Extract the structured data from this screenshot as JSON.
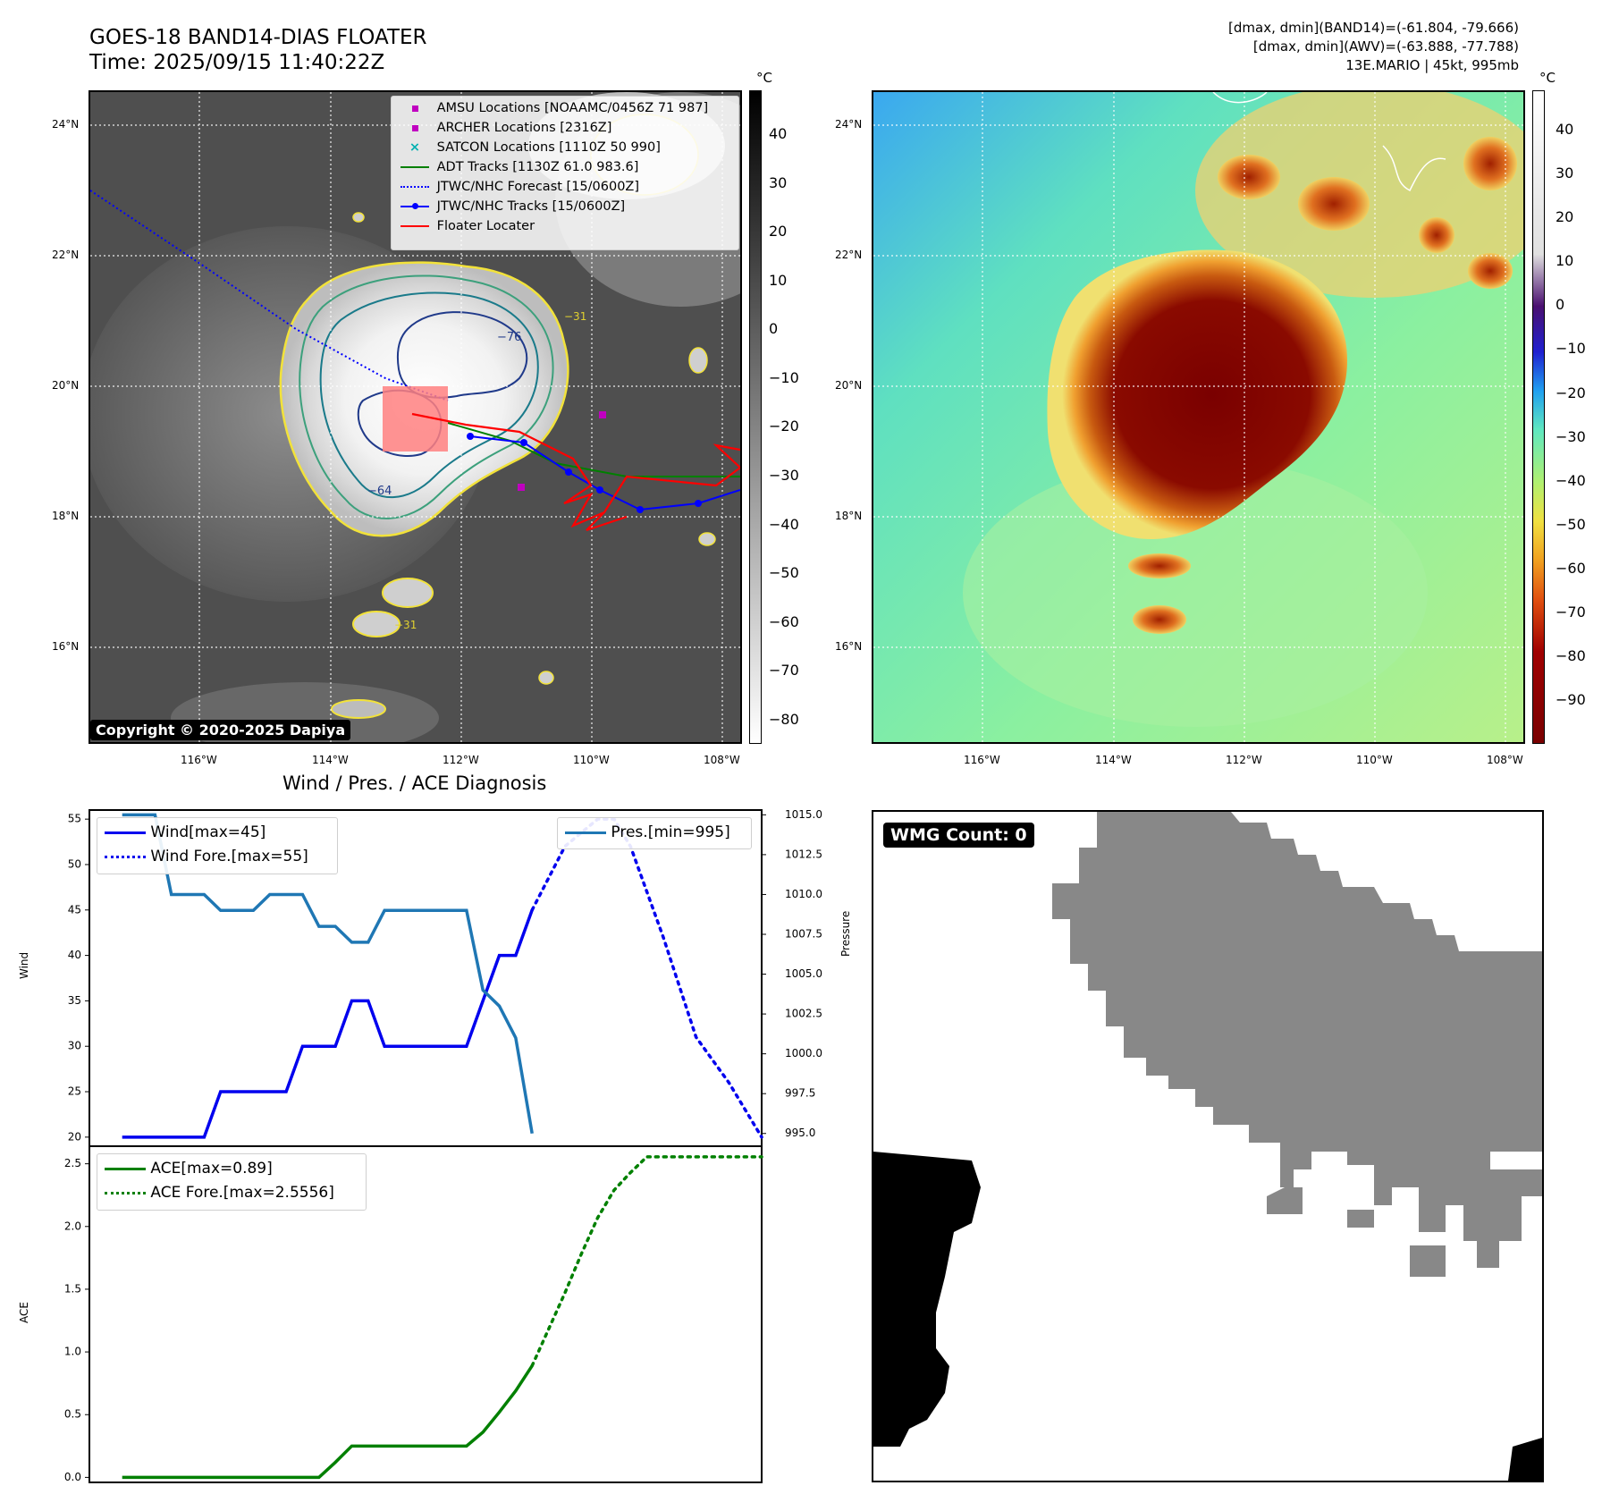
{
  "header": {
    "title_line1": "GOES-18 BAND14-DIAS FLOATER",
    "title_line2": "Time: 2025/09/15 11:40:22Z",
    "right_line1": "[dmax, dmin](BAND14)=(-61.804, -79.666)",
    "right_line2": "[dmax, dmin](AWV)=(-63.888, -77.788)",
    "right_line3": "13E.MARIO | 45kt, 995mb"
  },
  "map_axes": {
    "lat_ticks": [
      "24°N",
      "22°N",
      "20°N",
      "18°N",
      "16°N"
    ],
    "lon_ticks": [
      "116°W",
      "114°W",
      "112°W",
      "110°W",
      "108°W"
    ]
  },
  "ir_panel": {
    "colorbar_unit": "°C",
    "colorbar_ticks": [
      "40",
      "30",
      "20",
      "10",
      "0",
      "−10",
      "−20",
      "−30",
      "−40",
      "−50",
      "−60",
      "−70",
      "−80"
    ],
    "contour_labels": [
      "−76",
      "−64",
      "−31",
      "−31"
    ],
    "copyright": "Copyright © 2020-2025 Dapiya",
    "legend": [
      {
        "label": "AMSU Locations [NOAAMC/0456Z 71 987]",
        "color": "#c000c0",
        "marker": "square"
      },
      {
        "label": "ARCHER Locations [2316Z]",
        "color": "#c000c0",
        "marker": "square"
      },
      {
        "label": "SATCON Locations [1110Z 50 990]",
        "color": "#00b0b0",
        "marker": "x"
      },
      {
        "label": "ADT Tracks [1130Z 61.0 983.6]",
        "color": "#008000",
        "marker": "line"
      },
      {
        "label": "JTWC/NHC Forecast [15/0600Z]",
        "color": "#0000ff",
        "marker": "dotted"
      },
      {
        "label": "JTWC/NHC Tracks [15/0600Z]",
        "color": "#0000ff",
        "marker": "dotline"
      },
      {
        "label": "Floater Locater",
        "color": "#ff0000",
        "marker": "line"
      }
    ]
  },
  "awv_panel": {
    "colorbar_unit": "°C",
    "colorbar_ticks": [
      "40",
      "30",
      "20",
      "10",
      "0",
      "−10",
      "−20",
      "−30",
      "−40",
      "−50",
      "−60",
      "−70",
      "−80",
      "−90"
    ]
  },
  "wmg_panel": {
    "badge": "WMG Count: 0"
  },
  "diagnosis": {
    "title": "Wind / Pres. / ACE Diagnosis",
    "wind_axis_label": "Wind",
    "pressure_axis_label": "Pressure",
    "ace_axis_label": "ACE",
    "wind_legend": "Wind[max=45]",
    "wind_fore_legend": "Wind Fore.[max=55]",
    "pres_legend": "Pres.[min=995]",
    "ace_legend": "ACE[max=0.89]",
    "ace_fore_legend": "ACE Fore.[max=2.5556]",
    "colors": {
      "wind": "#0000ee",
      "pressure": "#1f77b4",
      "ace": "#008000"
    }
  },
  "chart_data": [
    {
      "type": "line",
      "title": "Wind / Pres. / ACE Diagnosis",
      "ylabel": "Wind",
      "ylim": [
        19,
        56
      ],
      "yticks": [
        20,
        25,
        30,
        35,
        40,
        45,
        50,
        55
      ],
      "x": [
        0,
        1,
        2,
        3,
        4,
        5,
        6,
        7,
        8,
        9,
        10,
        11,
        12,
        13,
        14,
        15,
        16,
        17,
        18,
        19,
        20,
        21,
        22,
        23,
        24,
        25,
        26,
        27,
        28,
        29,
        30,
        31,
        32,
        33,
        34,
        35,
        36,
        37,
        38,
        39
      ],
      "xlim": [
        -2,
        39
      ],
      "series": [
        {
          "name": "Wind[max=45]",
          "axis": "left",
          "style": "solid",
          "x": [
            0,
            1,
            2,
            3,
            4,
            5,
            6,
            7,
            8,
            9,
            10,
            11,
            12,
            13,
            14,
            15,
            16,
            17,
            18,
            19,
            20,
            21,
            22,
            23,
            24,
            25
          ],
          "values": [
            20,
            20,
            20,
            20,
            20,
            20,
            25,
            25,
            25,
            25,
            25,
            30,
            30,
            30,
            35,
            35,
            30,
            30,
            30,
            30,
            30,
            30,
            35,
            40,
            40,
            45
          ]
        },
        {
          "name": "Wind Fore.[max=55]",
          "axis": "left",
          "style": "dotted",
          "x": [
            25,
            27,
            29,
            30,
            31,
            33,
            35,
            37,
            39
          ],
          "values": [
            45,
            52,
            55,
            55,
            52,
            42,
            31,
            26,
            20
          ]
        },
        {
          "name": "Pres.[min=995]",
          "axis": "right",
          "style": "solid",
          "x": [
            0,
            1,
            2,
            3,
            4,
            5,
            6,
            7,
            8,
            9,
            10,
            11,
            12,
            13,
            14,
            15,
            16,
            17,
            18,
            19,
            20,
            21,
            22,
            23,
            24,
            25
          ],
          "values": [
            1015,
            1015,
            1015,
            1010,
            1010,
            1010,
            1009,
            1009,
            1009,
            1010,
            1010,
            1010,
            1008,
            1008,
            1007,
            1007,
            1009,
            1009,
            1009,
            1009,
            1009,
            1009,
            1004,
            1003,
            1001,
            995
          ]
        }
      ],
      "right_axis": {
        "label": "Pressure",
        "ylim": [
          994.2,
          1015.3
        ],
        "yticks": [
          995.0,
          997.5,
          1000.0,
          1002.5,
          1005.0,
          1007.5,
          1010.0,
          1012.5,
          1015.0
        ]
      }
    },
    {
      "type": "line",
      "ylabel": "ACE",
      "ylim": [
        -0.04,
        2.64
      ],
      "yticks": [
        0.0,
        0.5,
        1.0,
        1.5,
        2.0,
        2.5
      ],
      "xlim": [
        -2,
        39
      ],
      "series": [
        {
          "name": "ACE[max=0.89]",
          "style": "solid",
          "x": [
            0,
            1,
            2,
            3,
            4,
            5,
            6,
            7,
            8,
            9,
            10,
            11,
            12,
            13,
            14,
            15,
            16,
            17,
            18,
            19,
            20,
            21,
            22,
            23,
            24,
            25
          ],
          "values": [
            0,
            0,
            0,
            0,
            0,
            0,
            0,
            0,
            0,
            0,
            0,
            0,
            0,
            0.12,
            0.25,
            0.25,
            0.25,
            0.25,
            0.25,
            0.25,
            0.25,
            0.25,
            0.36,
            0.52,
            0.69,
            0.89
          ]
        },
        {
          "name": "ACE Fore.[max=2.5556]",
          "style": "dotted",
          "x": [
            25,
            26,
            27,
            28,
            29,
            30,
            31,
            32,
            33,
            34,
            35,
            36,
            37,
            38,
            39
          ],
          "values": [
            0.89,
            1.18,
            1.47,
            1.78,
            2.07,
            2.29,
            2.43,
            2.5556,
            2.5556,
            2.5556,
            2.5556,
            2.5556,
            2.5556,
            2.5556,
            2.5556
          ]
        }
      ]
    }
  ]
}
